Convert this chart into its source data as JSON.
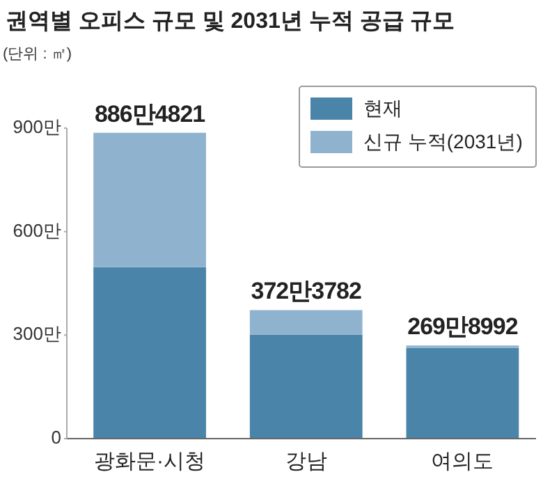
{
  "chart_data": {
    "type": "bar",
    "title": "권역별 오피스 규모 및 2031년 누적 공급 규모",
    "annotations": [
      "(단위 : ㎡)"
    ],
    "categories": [
      "광화문·시청",
      "강남",
      "여의도"
    ],
    "stacked": true,
    "series": [
      {
        "name": "현재",
        "color": "#4a84a8",
        "values": [
          497,
          301,
          263
        ]
      },
      {
        "name": "신규 누적(2031년)",
        "color": "#8fb3cf",
        "values": [
          389.5,
          71.4,
          6.9
        ]
      }
    ],
    "totals": [
      "886만4821",
      "372만3782",
      "269만8992"
    ],
    "ylim": [
      0,
      900
    ],
    "yticks": [
      {
        "value": 0,
        "label": "0"
      },
      {
        "value": 300,
        "label": "300만"
      },
      {
        "value": 600,
        "label": "600만"
      },
      {
        "value": 900,
        "label": "900만"
      }
    ],
    "legend": "top right"
  }
}
